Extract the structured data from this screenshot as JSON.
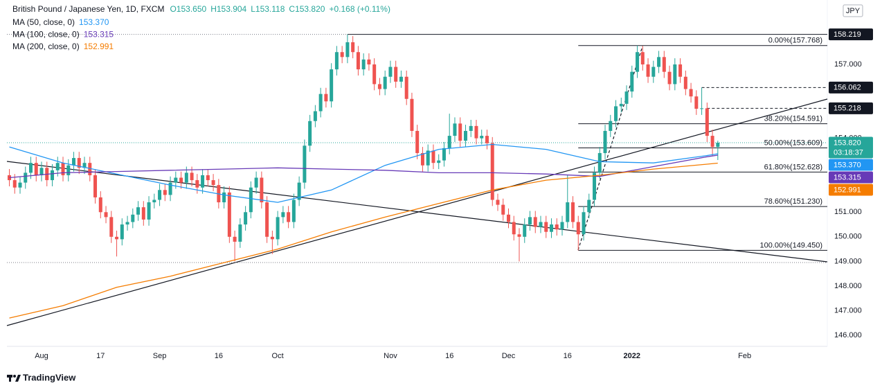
{
  "chart_data": {
    "type": "candlestick",
    "title": "British Pound / Japanese Yen, 1D, FXCM",
    "quote": [
      "O153.650",
      "H153.904",
      "L153.118",
      "C153.820",
      "+0.168 (+0.11%)"
    ],
    "currency": "JPY",
    "brand": "TradingView",
    "up_color": "#26a69a",
    "down_color": "#ef5350",
    "grid": false,
    "xlim": [
      -0.45,
      152.4
    ],
    "ylim": [
      145.55,
      159.335
    ],
    "yticks": [
      {
        "value": 146,
        "label": "146.000"
      },
      {
        "value": 147,
        "label": "147.000"
      },
      {
        "value": 148,
        "label": "148.000"
      },
      {
        "value": 149,
        "label": "149.000"
      },
      {
        "value": 150,
        "label": "150.000"
      },
      {
        "value": 151,
        "label": "151.000"
      },
      {
        "value": 154,
        "label": "154.000"
      },
      {
        "value": 157,
        "label": "157.000"
      }
    ],
    "xticks": [
      {
        "value": 6,
        "label": "Aug"
      },
      {
        "value": 17,
        "label": "17"
      },
      {
        "value": 28,
        "label": "Sep"
      },
      {
        "value": 39,
        "label": "16"
      },
      {
        "value": 50,
        "label": "Oct"
      },
      {
        "value": 71,
        "label": "Nov"
      },
      {
        "value": 82,
        "label": "16"
      },
      {
        "value": 93,
        "label": "Dec"
      },
      {
        "value": 104,
        "label": "16"
      },
      {
        "value": 116,
        "label": "2022"
      },
      {
        "value": 137,
        "label": "Feb"
      }
    ],
    "candles": {
      "open": [
        152.5,
        152.3,
        152.0,
        152.2,
        152.6,
        153.0,
        152.5,
        152.8,
        152.3,
        152.7,
        153.0,
        152.5,
        152.9,
        153.2,
        152.8,
        153.0,
        152.5,
        151.6,
        151.0,
        150.8,
        150.0,
        149.9,
        150.5,
        150.6,
        150.9,
        151.2,
        150.7,
        151.4,
        151.5,
        151.9,
        151.7,
        152.2,
        152.4,
        152.2,
        152.6,
        152.3,
        152.0,
        152.5,
        152.3,
        152.1,
        151.4,
        151.8,
        150.0,
        149.8,
        150.5,
        151.0,
        152.0,
        152.4,
        151.4,
        150.0,
        149.9,
        150.8,
        151.0,
        150.6,
        151.5,
        152.2,
        153.7,
        154.7,
        155.1,
        155.8,
        155.5,
        156.8,
        157.5,
        157.3,
        157.9,
        157.5,
        156.8,
        157.2,
        157.0,
        156.2,
        156.0,
        156.5,
        156.9,
        156.3,
        156.5,
        155.6,
        154.3,
        153.4,
        152.9,
        153.5,
        153.0,
        153.1,
        153.6,
        154.1,
        154.6,
        153.9,
        154.3,
        154.5,
        154.0,
        154.1,
        153.8,
        151.5,
        151.3,
        150.9,
        150.6,
        150.1,
        150.0,
        150.5,
        150.8,
        150.4,
        150.6,
        150.2,
        150.5,
        150.3,
        150.6,
        151.4,
        150.6,
        150.1,
        151.0,
        151.5,
        152.6,
        153.4,
        154.3,
        154.7,
        155.3,
        155.4,
        155.9,
        156.7,
        157.5,
        157.0,
        156.5,
        156.9,
        157.3,
        156.7,
        156.2,
        157.0,
        156.5,
        156.0,
        155.7,
        155.2,
        155.218,
        154.1,
        153.65
      ],
      "high": [
        152.75,
        152.55,
        152.45,
        152.85,
        153.25,
        153.25,
        153.05,
        153.05,
        152.95,
        153.25,
        153.25,
        153.15,
        153.45,
        153.45,
        153.25,
        153.25,
        152.75,
        151.85,
        151.25,
        151.05,
        150.25,
        150.75,
        150.85,
        151.15,
        151.45,
        151.45,
        151.65,
        151.75,
        152.15,
        152.15,
        152.45,
        152.65,
        152.65,
        152.85,
        152.85,
        152.55,
        152.75,
        152.75,
        152.55,
        152.35,
        152.05,
        152.05,
        150.25,
        150.75,
        151.25,
        152.25,
        152.65,
        152.65,
        151.65,
        150.25,
        151.05,
        151.25,
        151.25,
        151.75,
        152.45,
        153.95,
        154.95,
        155.35,
        156.05,
        156.05,
        157.05,
        157.75,
        157.75,
        158.219,
        158.15,
        157.75,
        157.45,
        157.45,
        157.25,
        156.45,
        156.75,
        157.15,
        157.15,
        156.75,
        156.75,
        155.85,
        154.55,
        153.65,
        153.75,
        153.75,
        153.35,
        153.85,
        155.0,
        154.85,
        154.85,
        154.55,
        154.75,
        154.75,
        154.35,
        154.35,
        154.05,
        151.75,
        151.55,
        151.15,
        150.85,
        150.35,
        150.75,
        151.05,
        151.05,
        150.85,
        150.85,
        150.75,
        150.75,
        150.85,
        152.5,
        151.65,
        150.85,
        151.25,
        151.75,
        152.85,
        153.65,
        154.55,
        154.95,
        155.55,
        155.65,
        156.15,
        156.95,
        157.768,
        157.75,
        157.25,
        157.15,
        157.55,
        157.55,
        156.95,
        157.25,
        157.25,
        156.75,
        156.25,
        155.95,
        156.062,
        155.45,
        154.35,
        153.904
      ],
      "low": [
        152.05,
        151.75,
        151.75,
        151.95,
        152.35,
        152.25,
        152.25,
        152.05,
        152.05,
        152.45,
        152.25,
        152.25,
        152.65,
        152.55,
        152.55,
        152.25,
        151.35,
        150.75,
        150.55,
        149.75,
        149.2,
        149.65,
        150.25,
        150.35,
        150.65,
        150.45,
        150.45,
        151.15,
        151.25,
        151.45,
        151.45,
        151.95,
        151.95,
        151.95,
        152.05,
        151.75,
        151.75,
        152.05,
        151.85,
        151.15,
        151.15,
        149.75,
        149.0,
        149.55,
        150.25,
        150.75,
        151.75,
        151.15,
        149.75,
        149.3,
        149.65,
        150.55,
        150.35,
        150.35,
        151.25,
        151.95,
        153.45,
        154.45,
        154.85,
        155.25,
        155.25,
        156.55,
        157.05,
        157.05,
        157.25,
        156.55,
        156.55,
        156.75,
        155.95,
        155.75,
        155.75,
        156.25,
        156.05,
        156.05,
        155.35,
        154.05,
        153.15,
        152.65,
        152.65,
        152.75,
        152.75,
        152.85,
        153.35,
        153.85,
        153.65,
        153.65,
        154.05,
        153.75,
        153.75,
        153.55,
        151.25,
        151.05,
        150.65,
        150.35,
        149.85,
        149.0,
        149.75,
        150.25,
        150.15,
        150.15,
        149.95,
        149.95,
        150.05,
        150.05,
        150.35,
        150.35,
        149.45,
        149.85,
        150.75,
        151.25,
        152.35,
        153.15,
        154.05,
        154.45,
        155.05,
        155.15,
        155.65,
        156.45,
        156.75,
        156.25,
        156.25,
        156.65,
        156.45,
        155.95,
        155.95,
        156.25,
        155.75,
        155.45,
        154.95,
        154.95,
        153.85,
        153.3,
        153.118
      ],
      "close": [
        152.3,
        152.0,
        152.2,
        152.6,
        153.0,
        152.5,
        152.8,
        152.3,
        152.7,
        153.0,
        152.5,
        152.9,
        153.2,
        152.8,
        153.0,
        152.5,
        151.6,
        151.0,
        150.8,
        150.0,
        149.9,
        150.5,
        150.6,
        150.9,
        151.2,
        150.7,
        151.4,
        151.5,
        151.9,
        151.7,
        152.2,
        152.4,
        152.2,
        152.6,
        152.3,
        152.0,
        152.5,
        152.3,
        152.1,
        151.4,
        151.8,
        150.0,
        149.8,
        150.5,
        151.0,
        152.0,
        152.4,
        151.4,
        150.0,
        149.9,
        150.8,
        151.0,
        150.6,
        151.5,
        152.2,
        153.7,
        154.7,
        155.1,
        155.8,
        155.5,
        156.8,
        157.5,
        157.3,
        157.9,
        157.5,
        156.8,
        157.2,
        157.0,
        156.2,
        156.0,
        156.5,
        156.9,
        156.3,
        156.5,
        155.6,
        154.3,
        153.4,
        152.9,
        153.5,
        153.0,
        153.1,
        153.6,
        154.1,
        154.6,
        153.9,
        154.3,
        154.5,
        154.0,
        154.1,
        153.8,
        151.5,
        151.3,
        150.9,
        150.6,
        150.1,
        150.0,
        150.5,
        150.8,
        150.4,
        150.6,
        150.2,
        150.5,
        150.3,
        150.6,
        151.4,
        150.6,
        150.1,
        151.0,
        151.5,
        152.6,
        153.4,
        154.3,
        154.7,
        155.3,
        155.4,
        155.9,
        156.7,
        157.5,
        157.0,
        156.5,
        156.9,
        157.3,
        156.7,
        156.2,
        157.0,
        156.5,
        156.0,
        155.7,
        155.2,
        155.218,
        154.1,
        153.65,
        153.82
      ]
    },
    "series": [
      {
        "name": "MA (50, close, 0)",
        "color": "#2196f3",
        "last_label": "153.370",
        "x": [
          0,
          10,
          20,
          30,
          40,
          50,
          60,
          70,
          80,
          90,
          100,
          110,
          120,
          130,
          132
        ],
        "values": [
          153.65,
          153.0,
          152.55,
          152.1,
          151.7,
          151.4,
          151.9,
          152.9,
          153.55,
          153.75,
          153.55,
          153.05,
          153.0,
          153.3,
          153.37
        ]
      },
      {
        "name": "MA (100, close, 0)",
        "color": "#673ab7",
        "last_label": "153.315",
        "x": [
          0,
          10,
          20,
          30,
          40,
          50,
          60,
          70,
          80,
          90,
          100,
          110,
          120,
          130,
          132
        ],
        "values": [
          152.4,
          152.6,
          152.65,
          152.7,
          152.75,
          152.8,
          152.75,
          152.7,
          152.6,
          152.6,
          152.55,
          152.45,
          152.85,
          153.25,
          153.315
        ]
      },
      {
        "name": "MA (200, close, 0)",
        "color": "#f57c00",
        "last_label": "152.991",
        "x": [
          0,
          10,
          20,
          30,
          40,
          50,
          60,
          70,
          80,
          90,
          100,
          110,
          120,
          130,
          132
        ],
        "values": [
          146.7,
          147.2,
          147.95,
          148.4,
          148.95,
          149.5,
          150.2,
          150.8,
          151.35,
          151.9,
          152.3,
          152.5,
          152.75,
          152.95,
          152.991
        ]
      }
    ],
    "fib_levels": [
      {
        "value": 157.768,
        "label": "0.00%(157.768)"
      },
      {
        "value": 154.591,
        "label": "38.20%(154.591)"
      },
      {
        "value": 153.609,
        "label": "50.00%(153.609)"
      },
      {
        "value": 152.628,
        "label": "61.80%(152.628)"
      },
      {
        "value": 151.23,
        "label": "78.60%(151.230)"
      },
      {
        "value": 149.45,
        "label": "100.00%(149.450)"
      }
    ],
    "price_lines": [
      {
        "value": 158.219,
        "label": "158.219"
      },
      {
        "value": 156.062,
        "label": "156.062"
      },
      {
        "value": 155.218,
        "label": "155.218"
      }
    ],
    "last_price": {
      "value": 153.82,
      "label": "153.820",
      "countdown": "03:18:37"
    }
  }
}
